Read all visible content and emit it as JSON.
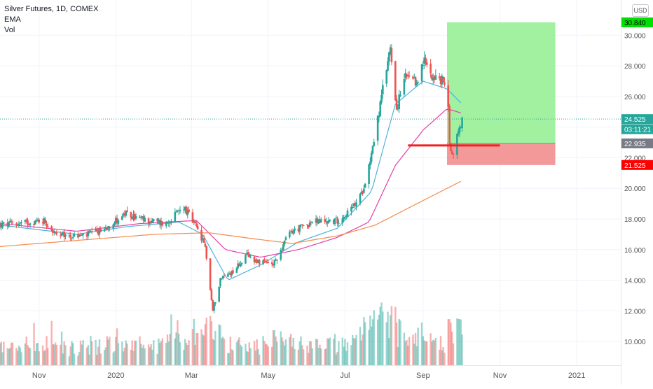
{
  "legend": {
    "title": "Silver Futures, 1D, COMEX",
    "ema": "EMA",
    "vol": "Vol"
  },
  "currency": "USD",
  "price_badges": [
    {
      "label": "30.840",
      "value": 30.84,
      "bg": "#00e000",
      "fg": "#000000"
    },
    {
      "label": "24.525",
      "value": 24.525,
      "bg": "#26a69a",
      "fg": "#ffffff"
    },
    {
      "label": "03:11:21",
      "value": 23.86,
      "bg": "#26a69a",
      "fg": "#ffffff"
    },
    {
      "label": "22.935",
      "value": 22.935,
      "bg": "#787b86",
      "fg": "#ffffff"
    },
    {
      "label": "21.525",
      "value": 21.525,
      "bg": "#ff0000",
      "fg": "#ffffff"
    }
  ],
  "colors": {
    "up": "#26a69a",
    "down": "#ef5350",
    "ema_fast": "#4fb3d9",
    "ema_mid": "#e040a8",
    "ema_slow": "#f58a4b",
    "profit_zone": "#90ee90",
    "loss_zone": "#f08080",
    "support_line": "#ee2222"
  },
  "chart_data": {
    "type": "candlestick",
    "title": "Silver Futures, 1D, COMEX",
    "y_ticks": [
      10,
      12,
      14,
      16,
      18,
      20,
      22,
      24,
      26,
      28,
      30
    ],
    "y_tick_labels": [
      "10.000",
      "12.000",
      "14.000",
      "16.000",
      "18.000",
      "20.000",
      "22.000",
      "24.000",
      "26.000",
      "28.000",
      "30.000"
    ],
    "ylim": [
      8.45,
      32.3
    ],
    "x_ticks": [
      "2019-11-01",
      "2020-01-01",
      "2020-03-01",
      "2020-05-01",
      "2020-07-01",
      "2020-09-01",
      "2020-11-01",
      "2021-01-01"
    ],
    "x_tick_labels": [
      "Nov",
      "2020",
      "Mar",
      "May",
      "Jul",
      "Sep",
      "Nov",
      "2021"
    ],
    "x_start": "2019-10-01",
    "x_end": "2021-02-05",
    "current_price": 24.525,
    "countdown": "03:11:21",
    "close_keypoints": [
      [
        "2019-10-01",
        17.6
      ],
      [
        "2019-10-15",
        17.7
      ],
      [
        "2019-11-05",
        17.9
      ],
      [
        "2019-11-15",
        16.9
      ],
      [
        "2019-12-05",
        16.9
      ],
      [
        "2019-12-20",
        17.2
      ],
      [
        "2020-01-08",
        18.3
      ],
      [
        "2020-01-25",
        17.9
      ],
      [
        "2020-02-10",
        17.7
      ],
      [
        "2020-02-24",
        18.8
      ],
      [
        "2020-03-05",
        17.4
      ],
      [
        "2020-03-12",
        16.2
      ],
      [
        "2020-03-18",
        12.0
      ],
      [
        "2020-03-24",
        14.1
      ],
      [
        "2020-04-03",
        14.6
      ],
      [
        "2020-04-14",
        15.6
      ],
      [
        "2020-04-24",
        15.2
      ],
      [
        "2020-05-05",
        15.0
      ],
      [
        "2020-05-18",
        17.1
      ],
      [
        "2020-06-05",
        17.8
      ],
      [
        "2020-06-25",
        17.9
      ],
      [
        "2020-07-06",
        18.6
      ],
      [
        "2020-07-14",
        19.6
      ],
      [
        "2020-07-20",
        21.5
      ],
      [
        "2020-07-27",
        24.5
      ],
      [
        "2020-08-06",
        29.3
      ],
      [
        "2020-08-11",
        25.2
      ],
      [
        "2020-08-18",
        27.3
      ],
      [
        "2020-08-26",
        26.8
      ],
      [
        "2020-09-02",
        28.3
      ],
      [
        "2020-09-10",
        27.2
      ],
      [
        "2020-09-20",
        26.9
      ],
      [
        "2020-09-22",
        23.2
      ],
      [
        "2020-09-24",
        22.1
      ],
      [
        "2020-09-28",
        23.4
      ],
      [
        "2020-10-02",
        24.5
      ]
    ],
    "ema_fast": [
      [
        "2019-10-01",
        17.6
      ],
      [
        "2019-12-01",
        17.0
      ],
      [
        "2020-01-10",
        17.5
      ],
      [
        "2020-02-20",
        17.8
      ],
      [
        "2020-03-10",
        17.0
      ],
      [
        "2020-03-30",
        14.0
      ],
      [
        "2020-04-25",
        15.0
      ],
      [
        "2020-05-25",
        16.5
      ],
      [
        "2020-06-25",
        17.4
      ],
      [
        "2020-07-22",
        19.8
      ],
      [
        "2020-08-10",
        25.5
      ],
      [
        "2020-09-01",
        27.0
      ],
      [
        "2020-09-20",
        26.5
      ],
      [
        "2020-10-02",
        25.5
      ]
    ],
    "ema_mid": [
      [
        "2019-10-01",
        17.7
      ],
      [
        "2019-12-01",
        17.2
      ],
      [
        "2020-01-20",
        17.7
      ],
      [
        "2020-03-05",
        17.9
      ],
      [
        "2020-03-28",
        16.0
      ],
      [
        "2020-04-25",
        15.5
      ],
      [
        "2020-05-25",
        16.0
      ],
      [
        "2020-06-25",
        16.8
      ],
      [
        "2020-07-20",
        17.8
      ],
      [
        "2020-08-10",
        21.5
      ],
      [
        "2020-09-01",
        23.8
      ],
      [
        "2020-09-20",
        25.2
      ],
      [
        "2020-10-02",
        24.9
      ]
    ],
    "ema_slow": [
      [
        "2019-10-01",
        16.2
      ],
      [
        "2019-12-01",
        16.6
      ],
      [
        "2020-02-01",
        17.0
      ],
      [
        "2020-03-15",
        17.1
      ],
      [
        "2020-04-20",
        16.7
      ],
      [
        "2020-05-20",
        16.4
      ],
      [
        "2020-06-25",
        16.9
      ],
      [
        "2020-07-25",
        17.6
      ],
      [
        "2020-08-20",
        18.7
      ],
      [
        "2020-09-20",
        20.0
      ],
      [
        "2020-10-02",
        20.5
      ]
    ],
    "long_position": {
      "start": "2020-09-20",
      "end": "2020-12-15",
      "entry": 22.935,
      "target": 30.84,
      "stop": 21.525
    },
    "support_line": {
      "start": "2020-08-20",
      "end": "2020-11-01",
      "price": 22.8
    }
  }
}
